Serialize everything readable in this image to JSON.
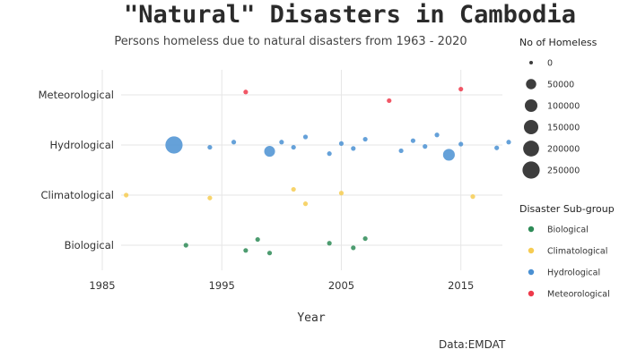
{
  "title": "\"Natural\" Disasters in Cambodia",
  "subtitle": "Persons homeless due to natural disasters from 1963 - 2020",
  "caption": "Data:EMDAT",
  "size_legend_title": "No of Homeless",
  "color_legend_title": "Disaster Sub-group",
  "colors": {
    "Biological": "#2e8b57",
    "Climatological": "#f6cc52",
    "Hydrological": "#4a90d2",
    "Meteorological": "#ee3a4b"
  },
  "chart_data": {
    "type": "scatter",
    "title": "\"Natural\" Disasters in Cambodia",
    "subtitle": "Persons homeless due to natural disasters from 1963 - 2020",
    "xlabel": "Year",
    "ylabel": "",
    "xlim": [
      1985,
      2019
    ],
    "x_ticks": [
      1985,
      1995,
      2005,
      2015
    ],
    "categories": [
      "Biological",
      "Climatological",
      "Hydrological",
      "Meteorological"
    ],
    "size_legend": [
      0,
      50000,
      100000,
      150000,
      200000,
      250000
    ],
    "grid": true,
    "legend_position": "right",
    "points": [
      {
        "year": 1997,
        "group": "Meteorological",
        "homeless": 0,
        "offset": 0.1
      },
      {
        "year": 2009,
        "group": "Meteorological",
        "homeless": 0,
        "offset": -0.2
      },
      {
        "year": 2015,
        "group": "Meteorological",
        "homeless": 0,
        "offset": 0.2
      },
      {
        "year": 1991,
        "group": "Hydrological",
        "homeless": 250000,
        "offset": 0.0
      },
      {
        "year": 1994,
        "group": "Hydrological",
        "homeless": 0,
        "offset": -0.08
      },
      {
        "year": 1996,
        "group": "Hydrological",
        "homeless": 0,
        "offset": 0.1
      },
      {
        "year": 1999,
        "group": "Hydrological",
        "homeless": 60000,
        "offset": -0.22
      },
      {
        "year": 2000,
        "group": "Hydrological",
        "homeless": 0,
        "offset": 0.1
      },
      {
        "year": 2001,
        "group": "Hydrological",
        "homeless": 0,
        "offset": -0.08
      },
      {
        "year": 2002,
        "group": "Hydrological",
        "homeless": 0,
        "offset": 0.28
      },
      {
        "year": 2004,
        "group": "Hydrological",
        "homeless": 0,
        "offset": -0.3
      },
      {
        "year": 2005,
        "group": "Hydrological",
        "homeless": 0,
        "offset": 0.05
      },
      {
        "year": 2006,
        "group": "Hydrological",
        "homeless": 0,
        "offset": -0.12
      },
      {
        "year": 2007,
        "group": "Hydrological",
        "homeless": 0,
        "offset": 0.2
      },
      {
        "year": 2010,
        "group": "Hydrological",
        "homeless": 0,
        "offset": -0.2
      },
      {
        "year": 2011,
        "group": "Hydrological",
        "homeless": 0,
        "offset": 0.15
      },
      {
        "year": 2012,
        "group": "Hydrological",
        "homeless": 0,
        "offset": -0.05
      },
      {
        "year": 2013,
        "group": "Hydrological",
        "homeless": 0,
        "offset": 0.35
      },
      {
        "year": 2014,
        "group": "Hydrological",
        "homeless": 80000,
        "offset": -0.34
      },
      {
        "year": 2015,
        "group": "Hydrological",
        "homeless": 0,
        "offset": 0.03
      },
      {
        "year": 2018,
        "group": "Hydrological",
        "homeless": 0,
        "offset": -0.1
      },
      {
        "year": 2019,
        "group": "Hydrological",
        "homeless": 0,
        "offset": 0.1
      },
      {
        "year": 1987,
        "group": "Climatological",
        "homeless": 0,
        "offset": 0.0
      },
      {
        "year": 1994,
        "group": "Climatological",
        "homeless": 0,
        "offset": -0.1
      },
      {
        "year": 2001,
        "group": "Climatological",
        "homeless": 0,
        "offset": 0.2
      },
      {
        "year": 2002,
        "group": "Climatological",
        "homeless": 0,
        "offset": -0.3
      },
      {
        "year": 2005,
        "group": "Climatological",
        "homeless": 0,
        "offset": 0.07
      },
      {
        "year": 2016,
        "group": "Climatological",
        "homeless": 0,
        "offset": -0.05
      },
      {
        "year": 1992,
        "group": "Biological",
        "homeless": 0,
        "offset": 0.0
      },
      {
        "year": 1997,
        "group": "Biological",
        "homeless": 0,
        "offset": -0.18
      },
      {
        "year": 1998,
        "group": "Biological",
        "homeless": 0,
        "offset": 0.2
      },
      {
        "year": 1999,
        "group": "Biological",
        "homeless": 0,
        "offset": -0.27
      },
      {
        "year": 2004,
        "group": "Biological",
        "homeless": 0,
        "offset": 0.07
      },
      {
        "year": 2006,
        "group": "Biological",
        "homeless": 0,
        "offset": -0.09
      },
      {
        "year": 2007,
        "group": "Biological",
        "homeless": 0,
        "offset": 0.23
      }
    ]
  }
}
